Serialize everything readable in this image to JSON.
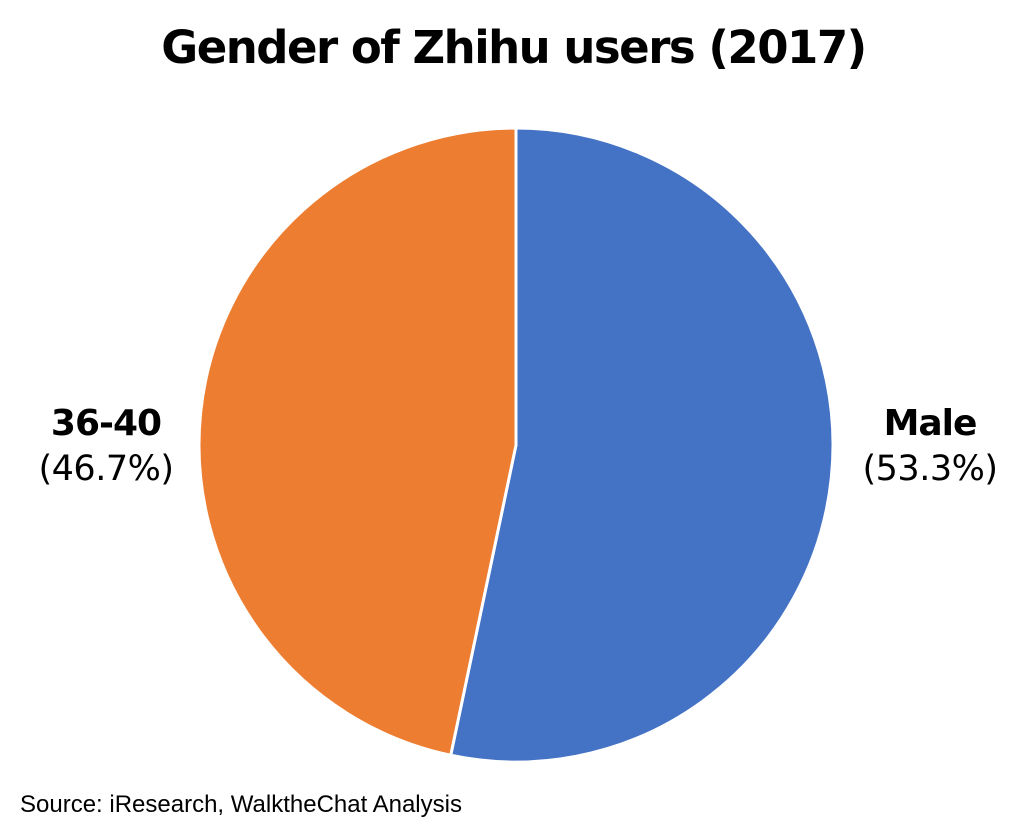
{
  "chart_data": {
    "type": "pie",
    "title": "Gender of Zhihu users (2017)",
    "slices": [
      {
        "label": "Male",
        "value": 53.3,
        "display": "(53.3%)",
        "color": "#4472C4"
      },
      {
        "label": "36-40",
        "value": 46.7,
        "display": "(46.7%)",
        "color": "#ED7D31"
      }
    ],
    "start_angle_deg": 0,
    "direction": "clockwise",
    "legend": "none"
  },
  "source": "Source: iResearch, WalktheChat Analysis"
}
